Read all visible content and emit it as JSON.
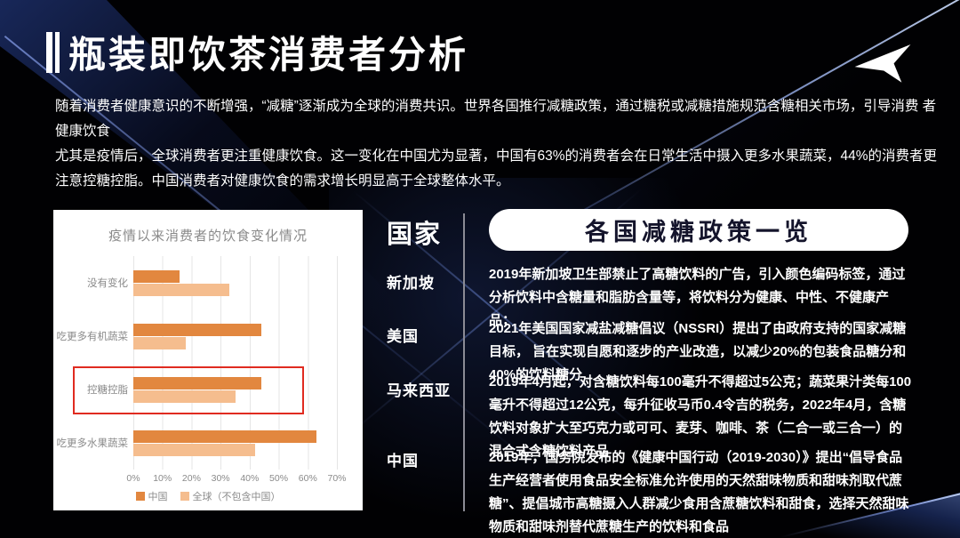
{
  "slide": {
    "title": "瓶装即饮茶消费者分析",
    "intro_p1": "随着消费者健康意识的不断增强，“减糖”逐渐成为全球的消费共识。世界各国推行减糖政策，通过糖税或减糖措施规范含糖相关市场，引导消费 者健康饮食",
    "intro_p2": "尤其是疫情后，全球消费者更注重健康饮食。这一变化在中国尤为显著，中国有63%的消费者会在日常生活中摄入更多水果蔬菜，44%的消费者更 注意控糖控脂。中国消费者对健康饮食的需求增长明显高于全球整体水平。"
  },
  "chart_data": {
    "type": "bar",
    "orientation": "horizontal",
    "title": "疫情以来消费者的饮食变化情况",
    "categories": [
      "没有变化",
      "吃更多有机蔬菜",
      "控糖控脂",
      "吃更多水果蔬菜"
    ],
    "series": [
      {
        "name": "中国",
        "color": "#e2873f",
        "values": [
          16,
          44,
          44,
          63
        ]
      },
      {
        "name": "全球（不包含中国）",
        "color": "#f5bd8e",
        "values": [
          33,
          18,
          35,
          42
        ]
      }
    ],
    "x_ticks": [
      "0%",
      "10%",
      "20%",
      "30%",
      "40%",
      "50%",
      "60%",
      "70%"
    ],
    "xlim": [
      0,
      70
    ],
    "grid": true,
    "legend_position": "bottom",
    "highlighted_category": "控糖控脂",
    "highlight_color": "#e02b20"
  },
  "policy_table": {
    "column_header": "国家",
    "panel_title": "各国减糖政策一览",
    "rows": [
      {
        "country": "新加坡",
        "policy": "2019年新加坡卫生部禁止了高糖饮料的广告，引入颜色编码标签，通过分析饮料中含糖量和脂肪含量等，将饮料分为健康、中性、不健康产品；"
      },
      {
        "country": "美国",
        "policy": "2021年美国国家减盐减糖倡议（NSSRI）提出了由政府支持的国家减糖目标， 旨在实现自愿和逐步的产业改造，以减少20%的包装食品糖分和40%的饮料糖分"
      },
      {
        "country": "马来西亚",
        "policy": "2019年4月起，对含糖饮料每100毫升不得超过5公克；蔬菜果汁类每100毫升不得超过12公克，每升征收马币0.4令吉的税务，2022年4月，含糖饮料对象扩大至巧克力或可可、麦芽、咖啡、茶（二合一或三合一）的混合式含糖饮料产品"
      },
      {
        "country": "中国",
        "policy": "2019年，国务院发布的《健康中国行动（2019-2030）》提出“倡导食品生产经营者使用食品安全标准允许使用的天然甜味物质和甜味剂取代蔗糖”、提倡城市高糖摄入人群减少食用含蔗糖饮料和甜食，选择天然甜味物质和甜味剂替代蔗糖生产的饮料和食品"
      }
    ]
  }
}
